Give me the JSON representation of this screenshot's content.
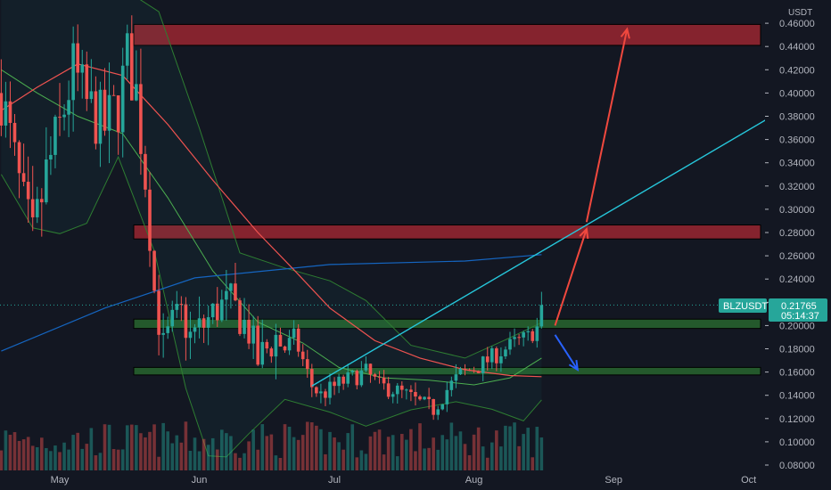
{
  "chart_data": {
    "type": "candlestick",
    "symbol": "BLZUSDT",
    "unit": "USDT",
    "last_price": "0.21765",
    "countdown": "05:14:37",
    "y_axis": {
      "ylim": [
        0.075,
        0.465
      ],
      "ticks": [
        0.46,
        0.44,
        0.42,
        0.4,
        0.38,
        0.36,
        0.34,
        0.32,
        0.3,
        0.28,
        0.26,
        0.24,
        0.22,
        0.2,
        0.18,
        0.16,
        0.14,
        0.12,
        0.1,
        0.08
      ],
      "tick_labels": [
        "0.46000",
        "0.44000",
        "0.42000",
        "0.40000",
        "0.38000",
        "0.36000",
        "0.34000",
        "0.32000",
        "0.30000",
        "0.28000",
        "0.26000",
        "0.24000",
        "0.22000",
        "0.20000",
        "0.18000",
        "0.16000",
        "0.14000",
        "0.12000",
        "0.10000",
        "0.08000"
      ]
    },
    "x_axis": {
      "labels": [
        "May",
        "Jun",
        "Jul",
        "Aug",
        "Sep",
        "Oct"
      ],
      "label_day_index": [
        0,
        31,
        61,
        92,
        123,
        153
      ]
    },
    "grid": false,
    "zones": [
      {
        "kind": "resistance",
        "color": "#b22833",
        "y_low": 0.441,
        "y_high": 0.459
      },
      {
        "kind": "resistance",
        "color": "#b22833",
        "y_low": 0.2745,
        "y_high": 0.2865
      },
      {
        "kind": "support",
        "color": "#2e7d32",
        "y_low": 0.1975,
        "y_high": 0.2055
      },
      {
        "kind": "support",
        "color": "#2e7d32",
        "y_low": 0.1575,
        "y_high": 0.164
      }
    ],
    "trendline": {
      "color": "#26c6da",
      "from": {
        "day": 56,
        "price": 0.148
      },
      "to": {
        "day": 167,
        "price": 0.4
      }
    },
    "arrows": [
      {
        "color": "#f0483e",
        "from": {
          "day": 110,
          "price": 0.2
        },
        "to": {
          "day": 117,
          "price": 0.283
        }
      },
      {
        "color": "#f0483e",
        "from": {
          "day": 117,
          "price": 0.289
        },
        "to": {
          "day": 126,
          "price": 0.455
        }
      },
      {
        "color": "#2962ff",
        "from": {
          "day": 110,
          "price": 0.192
        },
        "to": {
          "day": 115,
          "price": 0.162
        }
      }
    ],
    "ma_slow": {
      "color": "#1565c0",
      "points": [
        [
          -13,
          0.178
        ],
        [
          10,
          0.215
        ],
        [
          30,
          0.241
        ],
        [
          60,
          0.2525
        ],
        [
          90,
          0.2555
        ],
        [
          107,
          0.261
        ]
      ]
    },
    "ma_fast": {
      "color": "#ef5350",
      "points": [
        [
          -13,
          0.385
        ],
        [
          -5,
          0.405
        ],
        [
          4,
          0.425
        ],
        [
          14,
          0.415
        ],
        [
          24,
          0.373
        ],
        [
          34,
          0.325
        ],
        [
          44,
          0.28
        ],
        [
          52,
          0.248
        ],
        [
          60,
          0.215
        ],
        [
          70,
          0.187
        ],
        [
          80,
          0.172
        ],
        [
          90,
          0.162
        ],
        [
          100,
          0.157
        ],
        [
          107,
          0.156
        ]
      ]
    },
    "bb_upper": {
      "color": "#2e7d32",
      "points": [
        [
          -13,
          0.49
        ],
        [
          -5,
          0.49
        ],
        [
          4,
          0.49
        ],
        [
          14,
          0.49
        ],
        [
          22,
          0.47
        ],
        [
          31,
          0.37
        ],
        [
          40,
          0.2625
        ],
        [
          50,
          0.2495
        ],
        [
          60,
          0.2385
        ],
        [
          68,
          0.2215
        ],
        [
          78,
          0.183
        ],
        [
          90,
          0.172
        ],
        [
          100,
          0.1895
        ],
        [
          107,
          0.2025
        ]
      ]
    },
    "bb_mid": {
      "color": "#2e7d32",
      "points": [
        [
          -13,
          0.42
        ],
        [
          -5,
          0.4
        ],
        [
          4,
          0.38
        ],
        [
          14,
          0.365
        ],
        [
          24,
          0.31
        ],
        [
          34,
          0.247
        ],
        [
          44,
          0.203
        ],
        [
          54,
          0.185
        ],
        [
          62,
          0.164
        ],
        [
          72,
          0.155
        ],
        [
          82,
          0.153
        ],
        [
          92,
          0.149
        ],
        [
          100,
          0.155
        ],
        [
          107,
          0.172
        ]
      ]
    },
    "bb_lower": {
      "color": "#2e7d32",
      "points": [
        [
          -13,
          0.33
        ],
        [
          -6,
          0.284
        ],
        [
          0,
          0.279
        ],
        [
          6,
          0.288
        ],
        [
          13,
          0.345
        ],
        [
          21,
          0.264
        ],
        [
          28,
          0.146
        ],
        [
          33,
          0.088
        ],
        [
          37,
          0.087
        ],
        [
          42,
          0.107
        ],
        [
          50,
          0.1365
        ],
        [
          60,
          0.1255
        ],
        [
          68,
          0.1135
        ],
        [
          78,
          0.1275
        ],
        [
          88,
          0.1345
        ],
        [
          96,
          0.128
        ],
        [
          103,
          0.118
        ],
        [
          107,
          0.136
        ]
      ]
    }
  }
}
